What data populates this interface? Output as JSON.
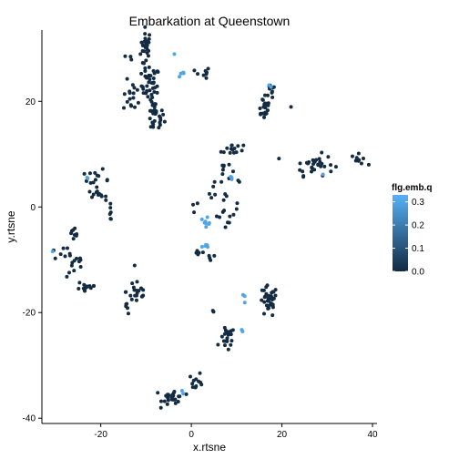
{
  "chart_data": {
    "type": "scatter",
    "title": "Embarkation at Queenstown",
    "xlabel": "x.rtsne",
    "ylabel": "y.rtsne",
    "xlim": [
      -33,
      41
    ],
    "ylim": [
      -41,
      33.5
    ],
    "x_ticks": [
      -20,
      0,
      20,
      40
    ],
    "y_ticks": [
      -40,
      -20,
      0,
      20
    ],
    "x_tick_labels": [
      "-20",
      "0",
      "20",
      "40"
    ],
    "y_tick_labels": [
      "-40",
      "-20",
      "0",
      "20"
    ],
    "grid": false,
    "legend": {
      "title": "flg.emb.q",
      "position": "right",
      "ticks": [
        0.0,
        0.1,
        0.2,
        0.3
      ],
      "tick_labels": [
        "0.0",
        "0.1",
        "0.2",
        "0.3"
      ],
      "range": [
        0.0,
        0.33
      ],
      "color_low": "#132B43",
      "color_high": "#56B1F7"
    },
    "clusters": [
      {
        "cx": -10,
        "cy": 30,
        "sx": 0.6,
        "sy": 2.0,
        "n": 30,
        "v": 0.0
      },
      {
        "cx": -9,
        "cy": 23,
        "sx": 1.0,
        "sy": 1.8,
        "n": 35,
        "v": 0.0
      },
      {
        "cx": -8,
        "cy": 17,
        "sx": 1.0,
        "sy": 1.5,
        "n": 30,
        "v": 0.0
      },
      {
        "cx": -13,
        "cy": 21,
        "sx": 1.0,
        "sy": 1.5,
        "n": 16,
        "v": 0.0
      },
      {
        "cx": -14,
        "cy": 28,
        "sx": 0.4,
        "sy": 0.5,
        "n": 3,
        "v": 0.0
      },
      {
        "cx": -2,
        "cy": 25.5,
        "sx": 0.4,
        "sy": 0.6,
        "n": 5,
        "v": 0.3
      },
      {
        "cx": -4,
        "cy": 29,
        "sx": 0.2,
        "sy": 0.2,
        "n": 1,
        "v": 0.3
      },
      {
        "cx": 2.5,
        "cy": 25,
        "sx": 0.8,
        "sy": 0.8,
        "n": 8,
        "v": 0.0
      },
      {
        "cx": 16,
        "cy": 19,
        "sx": 0.8,
        "sy": 1.2,
        "n": 22,
        "v": 0.0
      },
      {
        "cx": 18,
        "cy": 22,
        "sx": 0.8,
        "sy": 1.0,
        "n": 10,
        "v": 0.0
      },
      {
        "cx": 17.5,
        "cy": 23,
        "sx": 0.2,
        "sy": 0.2,
        "n": 2,
        "v": 0.3
      },
      {
        "cx": 22,
        "cy": 19,
        "sx": 0.2,
        "sy": 0.2,
        "n": 1,
        "v": 0.0
      },
      {
        "cx": 27,
        "cy": 8,
        "sx": 2.2,
        "sy": 1.0,
        "n": 32,
        "v": 0.0
      },
      {
        "cx": 29,
        "cy": 6,
        "sx": 0.2,
        "sy": 0.2,
        "n": 1,
        "v": 0.3
      },
      {
        "cx": 37,
        "cy": 9,
        "sx": 0.8,
        "sy": 0.5,
        "n": 10,
        "v": 0.0
      },
      {
        "cx": 9,
        "cy": 11,
        "sx": 1.2,
        "sy": 0.8,
        "n": 14,
        "v": 0.0
      },
      {
        "cx": 7,
        "cy": 7,
        "sx": 0.8,
        "sy": 1.0,
        "n": 8,
        "v": 0.0
      },
      {
        "cx": 9,
        "cy": 5.5,
        "sx": 0.4,
        "sy": 0.3,
        "n": 3,
        "v": 0.3
      },
      {
        "cx": 10.5,
        "cy": 5,
        "sx": 0.2,
        "sy": 0.3,
        "n": 2,
        "v": 0.0
      },
      {
        "cx": 5,
        "cy": 3,
        "sx": 0.8,
        "sy": 1.0,
        "n": 6,
        "v": 0.0
      },
      {
        "cx": 3.5,
        "cy": -2.5,
        "sx": 0.4,
        "sy": 0.6,
        "n": 8,
        "v": 0.3
      },
      {
        "cx": 8,
        "cy": -1,
        "sx": 1.2,
        "sy": 2.0,
        "n": 14,
        "v": 0.0
      },
      {
        "cx": 1,
        "cy": 0,
        "sx": 0.4,
        "sy": 0.3,
        "n": 3,
        "v": 0.0
      },
      {
        "cx": 3,
        "cy": -7.5,
        "sx": 0.6,
        "sy": 0.4,
        "n": 5,
        "v": 0.3
      },
      {
        "cx": 1.5,
        "cy": -8.5,
        "sx": 0.8,
        "sy": 0.4,
        "n": 5,
        "v": 0.0
      },
      {
        "cx": 4.5,
        "cy": -9.5,
        "sx": 0.6,
        "sy": 0.6,
        "n": 4,
        "v": 0.0
      },
      {
        "cx": -21,
        "cy": 5,
        "sx": 1.5,
        "sy": 1.0,
        "n": 16,
        "v": 0.0
      },
      {
        "cx": -23,
        "cy": 5.8,
        "sx": 0.2,
        "sy": 0.2,
        "n": 2,
        "v": 0.3
      },
      {
        "cx": -20,
        "cy": 2,
        "sx": 1.2,
        "sy": 0.5,
        "n": 8,
        "v": 0.0
      },
      {
        "cx": -18,
        "cy": -1,
        "sx": 0.5,
        "sy": 0.7,
        "n": 6,
        "v": 0.0
      },
      {
        "cx": -29,
        "cy": -9,
        "sx": 1.2,
        "sy": 0.6,
        "n": 8,
        "v": 0.0
      },
      {
        "cx": -30.5,
        "cy": -8.5,
        "sx": 0.2,
        "sy": 0.2,
        "n": 1,
        "v": 0.3
      },
      {
        "cx": -26,
        "cy": -6,
        "sx": 1.0,
        "sy": 1.0,
        "n": 10,
        "v": 0.0
      },
      {
        "cx": -25.5,
        "cy": -11,
        "sx": 1.0,
        "sy": 1.2,
        "n": 10,
        "v": 0.0
      },
      {
        "cx": -23,
        "cy": -15,
        "sx": 1.2,
        "sy": 0.8,
        "n": 14,
        "v": 0.0
      },
      {
        "cx": -12,
        "cy": -16,
        "sx": 1.2,
        "sy": 1.5,
        "n": 20,
        "v": 0.0
      },
      {
        "cx": -14,
        "cy": -19,
        "sx": 0.6,
        "sy": 0.8,
        "n": 5,
        "v": 0.0
      },
      {
        "cx": 17,
        "cy": -18,
        "sx": 1.0,
        "sy": 1.5,
        "n": 35,
        "v": 0.0
      },
      {
        "cx": 11.5,
        "cy": -17.5,
        "sx": 0.2,
        "sy": 0.4,
        "n": 3,
        "v": 0.3
      },
      {
        "cx": 8,
        "cy": -25,
        "sx": 0.8,
        "sy": 1.2,
        "n": 20,
        "v": 0.0
      },
      {
        "cx": 11,
        "cy": -24,
        "sx": 0.4,
        "sy": 0.3,
        "n": 2,
        "v": 0.3
      },
      {
        "cx": 5,
        "cy": -20,
        "sx": 0.4,
        "sy": 0.3,
        "n": 2,
        "v": 0.0
      },
      {
        "cx": -4,
        "cy": -36,
        "sx": 1.2,
        "sy": 0.8,
        "n": 28,
        "v": 0.0
      },
      {
        "cx": 1,
        "cy": -33,
        "sx": 0.8,
        "sy": 0.8,
        "n": 12,
        "v": 0.0
      },
      {
        "cx": -2,
        "cy": -35,
        "sx": 0.2,
        "sy": 0.2,
        "n": 2,
        "v": 0.3
      }
    ]
  }
}
